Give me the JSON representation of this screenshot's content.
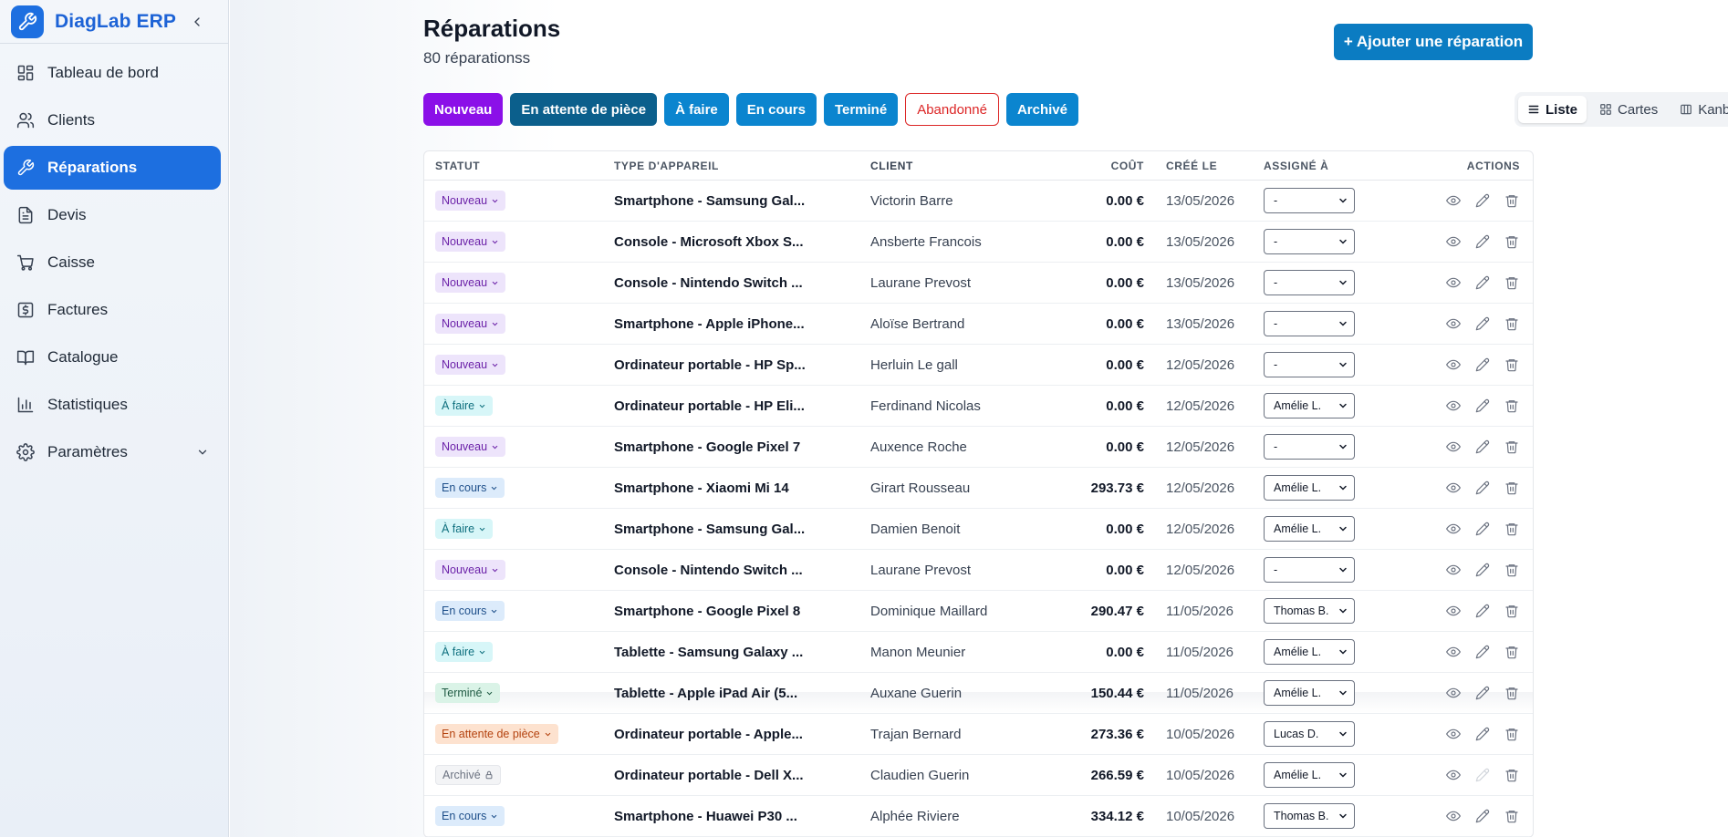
{
  "app": {
    "name": "DiagLab ERP"
  },
  "sidebar": {
    "items": [
      {
        "label": "Tableau de bord",
        "icon": "dashboard-icon"
      },
      {
        "label": "Clients",
        "icon": "users-icon"
      },
      {
        "label": "Réparations",
        "icon": "wrench-icon",
        "active": true
      },
      {
        "label": "Devis",
        "icon": "document-icon"
      },
      {
        "label": "Caisse",
        "icon": "cart-icon"
      },
      {
        "label": "Factures",
        "icon": "invoice-icon"
      },
      {
        "label": "Catalogue",
        "icon": "book-icon"
      },
      {
        "label": "Statistiques",
        "icon": "bar-chart-icon"
      },
      {
        "label": "Paramètres",
        "icon": "gear-icon"
      }
    ]
  },
  "header": {
    "title": "Réparations",
    "subtitle": "80 réparationss",
    "add_label": "+ Ajouter une réparation"
  },
  "filters": [
    {
      "label": "Nouveau",
      "color": "#8b10e8"
    },
    {
      "label": "En attente de pièce",
      "color": "#0b5f8c"
    },
    {
      "label": "À faire",
      "color": "#0b85cf"
    },
    {
      "label": "En cours",
      "color": "#0b85cf"
    },
    {
      "label": "Terminé",
      "color": "#0b85cf"
    },
    {
      "label": "Abandonné",
      "color": "#dc2626"
    },
    {
      "label": "Archivé",
      "color": "#0b85cf"
    }
  ],
  "views": [
    {
      "label": "Liste",
      "icon": "list-icon",
      "active": true
    },
    {
      "label": "Cartes",
      "icon": "grid-icon"
    },
    {
      "label": "Kanban",
      "icon": "columns-icon"
    }
  ],
  "table": {
    "columns": {
      "status": "STATUT",
      "type": "TYPE D'APPAREIL",
      "client": "CLIENT",
      "cost": "COÛT",
      "created": "CRÉÉ LE",
      "assigned": "ASSIGNÉ À",
      "actions": "ACTIONS"
    },
    "rows": [
      {
        "status": "Nouveau",
        "type": "Smartphone - Samsung Gal...",
        "client": "Victorin Barre",
        "cost": "0.00 €",
        "date": "13/05/2026",
        "assigned": "-"
      },
      {
        "status": "Nouveau",
        "type": "Console - Microsoft Xbox S...",
        "client": "Ansberte Francois",
        "cost": "0.00 €",
        "date": "13/05/2026",
        "assigned": "-"
      },
      {
        "status": "Nouveau",
        "type": "Console - Nintendo Switch ...",
        "client": "Laurane Prevost",
        "cost": "0.00 €",
        "date": "13/05/2026",
        "assigned": "-"
      },
      {
        "status": "Nouveau",
        "type": "Smartphone - Apple iPhone...",
        "client": "Aloïse Bertrand",
        "cost": "0.00 €",
        "date": "13/05/2026",
        "assigned": "-"
      },
      {
        "status": "Nouveau",
        "type": "Ordinateur portable - HP Sp...",
        "client": "Herluin Le gall",
        "cost": "0.00 €",
        "date": "12/05/2026",
        "assigned": "-"
      },
      {
        "status": "À faire",
        "type": "Ordinateur portable - HP Eli...",
        "client": "Ferdinand Nicolas",
        "cost": "0.00 €",
        "date": "12/05/2026",
        "assigned": "Amélie L."
      },
      {
        "status": "Nouveau",
        "type": "Smartphone - Google Pixel 7",
        "client": "Auxence Roche",
        "cost": "0.00 €",
        "date": "12/05/2026",
        "assigned": "-"
      },
      {
        "status": "En cours",
        "type": "Smartphone - Xiaomi Mi 14",
        "client": "Girart Rousseau",
        "cost": "293.73 €",
        "date": "12/05/2026",
        "assigned": "Amélie L."
      },
      {
        "status": "À faire",
        "type": "Smartphone - Samsung Gal...",
        "client": "Damien Benoit",
        "cost": "0.00 €",
        "date": "12/05/2026",
        "assigned": "Amélie L."
      },
      {
        "status": "Nouveau",
        "type": "Console - Nintendo Switch ...",
        "client": "Laurane Prevost",
        "cost": "0.00 €",
        "date": "12/05/2026",
        "assigned": "-"
      },
      {
        "status": "En cours",
        "type": "Smartphone - Google Pixel 8",
        "client": "Dominique Maillard",
        "cost": "290.47 €",
        "date": "11/05/2026",
        "assigned": "Thomas B."
      },
      {
        "status": "À faire",
        "type": "Tablette - Samsung Galaxy ...",
        "client": "Manon Meunier",
        "cost": "0.00 €",
        "date": "11/05/2026",
        "assigned": "Amélie L."
      },
      {
        "status": "Terminé",
        "type": "Tablette - Apple iPad Air (5...",
        "client": "Auxane Guerin",
        "cost": "150.44 €",
        "date": "11/05/2026",
        "assigned": "Amélie L."
      },
      {
        "status": "En attente de pièce",
        "type": "Ordinateur portable - Apple...",
        "client": "Trajan Bernard",
        "cost": "273.36 €",
        "date": "10/05/2026",
        "assigned": "Lucas D."
      },
      {
        "status": "Archivé",
        "type": "Ordinateur portable - Dell X...",
        "client": "Claudien Guerin",
        "cost": "266.59 €",
        "date": "10/05/2026",
        "assigned": "Amélie L."
      },
      {
        "status": "En cours",
        "type": "Smartphone - Huawei P30 ...",
        "client": "Alphée Riviere",
        "cost": "334.12 €",
        "date": "10/05/2026",
        "assigned": "Thomas B."
      }
    ]
  }
}
